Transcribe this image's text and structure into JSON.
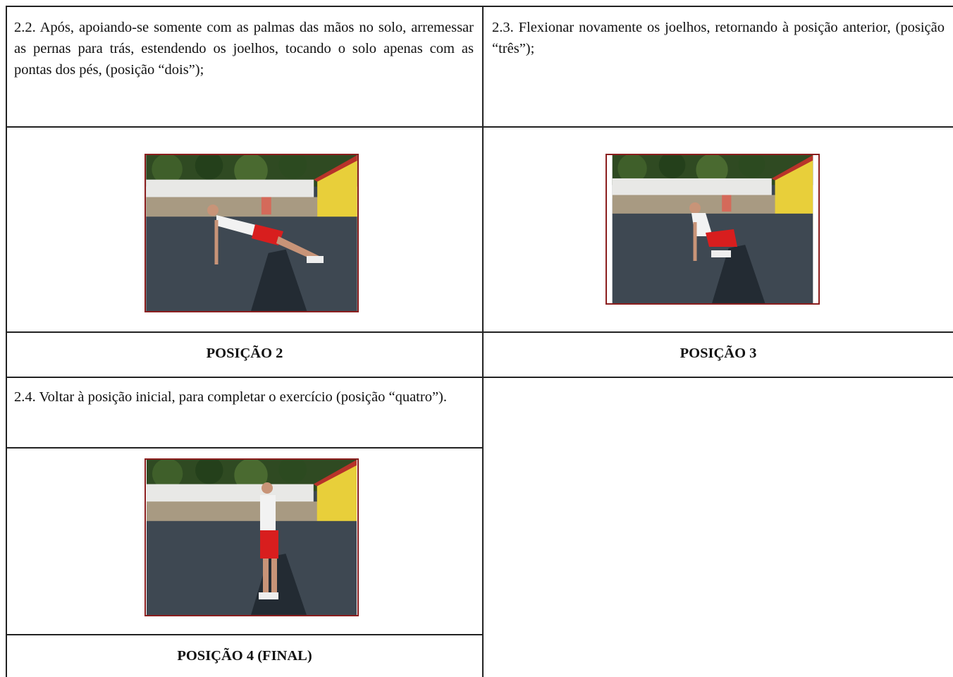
{
  "table": {
    "rows": [
      [
        "2.2. Após, apoiando-se somente com as palmas das mãos no solo, arremessar as pernas para trás, estendendo os joelhos, tocando o solo apenas com as pontas dos pés, (posição “dois”);",
        "2.3. Flexionar novamente os joelhos, retornando à posição anterior, (posição “três”);"
      ],
      [
        "POSIÇÃO 2",
        "POSIÇÃO 3"
      ],
      [
        "2.4. Voltar à posição inicial, para completar o exercício (posição “quatro”)."
      ],
      [
        "POSIÇÃO 4 (FINAL)"
      ]
    ]
  }
}
